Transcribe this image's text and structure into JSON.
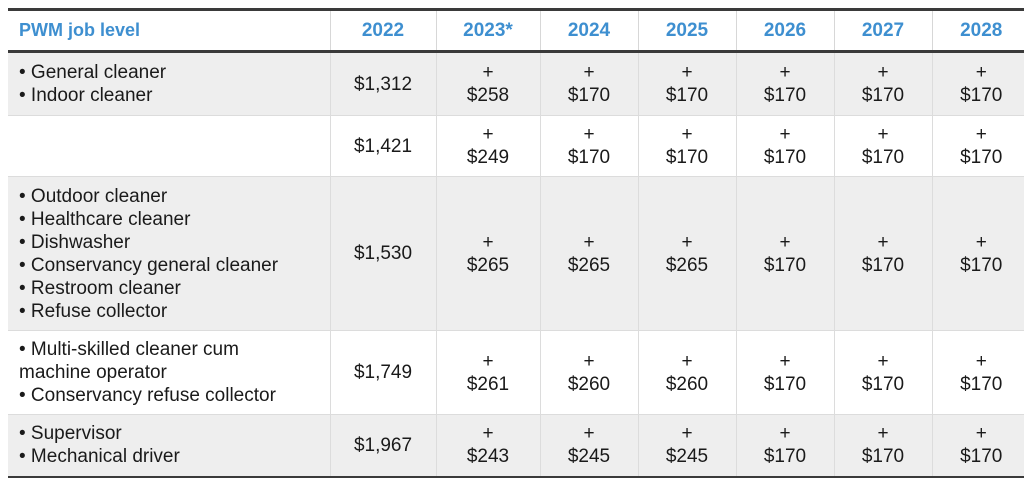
{
  "table": {
    "header": {
      "job_level": "PWM job level",
      "years": [
        "2022",
        "2023*",
        "2024",
        "2025",
        "2026",
        "2027",
        "2028"
      ]
    },
    "rows": [
      {
        "jobs": [
          "• General cleaner",
          "• Indoor cleaner"
        ],
        "base": "$1,312",
        "increments": [
          "$258",
          "$170",
          "$170",
          "$170",
          "$170",
          "$170"
        ]
      },
      {
        "jobs": [],
        "base": "$1,421",
        "increments": [
          "$249",
          "$170",
          "$170",
          "$170",
          "$170",
          "$170"
        ]
      },
      {
        "jobs": [
          "• Outdoor cleaner",
          "• Healthcare cleaner",
          "• Dishwasher",
          "• Conservancy general cleaner",
          "• Restroom cleaner",
          "• Refuse collector"
        ],
        "base": "$1,530",
        "increments": [
          "$265",
          "$265",
          "$265",
          "$170",
          "$170",
          "$170"
        ]
      },
      {
        "jobs": [
          "• Multi-skilled cleaner cum",
          "machine operator",
          "• Conservancy refuse collector"
        ],
        "base": "$1,749",
        "increments": [
          "$261",
          "$260",
          "$260",
          "$170",
          "$170",
          "$170"
        ]
      },
      {
        "jobs": [
          "• Supervisor",
          "• Mechanical driver"
        ],
        "base": "$1,967",
        "increments": [
          "$243",
          "$245",
          "$245",
          "$170",
          "$170",
          "$170"
        ]
      }
    ],
    "plus_sign": "+",
    "colors": {
      "header_text": "#3e8fd0",
      "row_shade": "#eeeeee",
      "rule": "#3a3a3a"
    }
  }
}
